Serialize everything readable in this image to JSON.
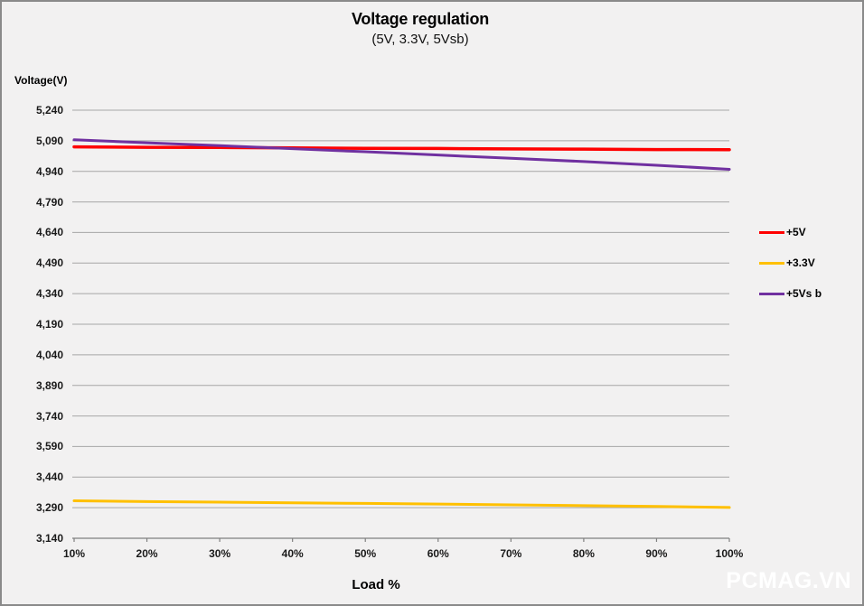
{
  "chart": {
    "title": "Voltage regulation",
    "subtitle": "(5V, 3.3V, 5Vsb)",
    "y_axis_title": "Voltage(V)",
    "x_axis_title": "Load %"
  },
  "watermark": "PCMAG.VN",
  "chart_data": {
    "type": "line",
    "title": "Voltage regulation",
    "subtitle": "(5V, 3.3V, 5Vsb)",
    "xlabel": "Load %",
    "ylabel": "Voltage(V)",
    "categories": [
      "10%",
      "20%",
      "30%",
      "40%",
      "50%",
      "60%",
      "70%",
      "80%",
      "90%",
      "100%"
    ],
    "series": [
      {
        "name": "+5V",
        "color": "#ff0000",
        "width": 3.5,
        "values": [
          5060,
          5058,
          5057,
          5055,
          5053,
          5052,
          5050,
          5049,
          5047,
          5046
        ]
      },
      {
        "name": "+3.3V",
        "color": "#ffc000",
        "width": 3,
        "values": [
          3324,
          3320,
          3317,
          3314,
          3311,
          3308,
          3304,
          3300,
          3296,
          3291
        ]
      },
      {
        "name": "+5Vs b",
        "color": "#7030a0",
        "width": 3,
        "values": [
          5095,
          5080,
          5066,
          5051,
          5036,
          5020,
          5004,
          4988,
          4970,
          4950
        ]
      }
    ],
    "y_ticks": {
      "values": [
        5240,
        5090,
        4940,
        4790,
        4640,
        4490,
        4340,
        4190,
        4040,
        3890,
        3740,
        3590,
        3440,
        3290,
        3140
      ],
      "labels": [
        "5,240",
        "5,090",
        "4,940",
        "4,790",
        "4,640",
        "4,490",
        "4,340",
        "4,190",
        "4,040",
        "3,890",
        "3,740",
        "3,590",
        "3,440",
        "3,290",
        "3,140"
      ]
    },
    "ylim": [
      3140,
      5240
    ],
    "grid": true,
    "legend_position": "right"
  },
  "colors": {
    "gridline": "#a6a6a6",
    "axis": "#808080",
    "background": "#f2f1f1",
    "border": "#8a8a8a",
    "watermark": "#ffffff"
  }
}
